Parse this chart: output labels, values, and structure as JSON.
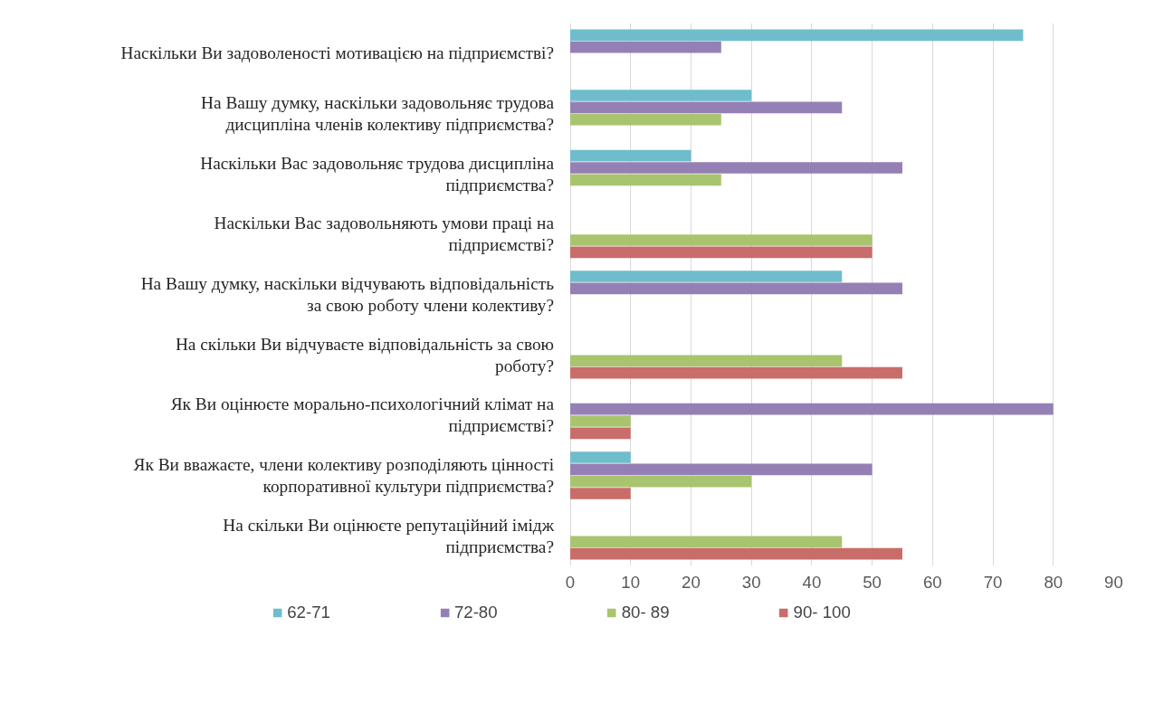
{
  "chart_data": {
    "type": "bar",
    "orientation": "horizontal",
    "categories": [
      "Наскільки Ви задоволеності мотивацією на підприємстві?",
      "На Вашу думку, наскільки задовольняє трудова дисципліна членів колективу підприємства?",
      "Наскільки Вас задовольняє трудова дисципліна підприємства?",
      "Наскільки Вас задовольняють умови праці на підприємстві?",
      "На Вашу думку, наскільки відчувають відповідальність за свою роботу члени колективу?",
      "На скільки Ви відчуваєте відповідальність за свою роботу?",
      "Як Ви оцінюєте морально-психологічний клімат на підприємстві?",
      "Як Ви вважаєте, члени колективу розподіляють цінності корпоративної культури підприємства?",
      "На скільки Ви оцінюєте репутаційний імідж підприємства?"
    ],
    "series": [
      {
        "name": "62-71",
        "color": "#6fbdcc",
        "values": [
          75,
          30,
          20,
          null,
          45,
          null,
          null,
          10,
          null
        ]
      },
      {
        "name": "72-80",
        "color": "#9580b5",
        "values": [
          25,
          45,
          55,
          null,
          55,
          null,
          80,
          50,
          null
        ]
      },
      {
        "name": "80- 89",
        "color": "#a8c46f",
        "values": [
          null,
          25,
          25,
          50,
          null,
          45,
          10,
          30,
          45
        ]
      },
      {
        "name": "90- 100",
        "color": "#c96d6a",
        "values": [
          null,
          null,
          null,
          50,
          null,
          55,
          10,
          10,
          55
        ]
      }
    ],
    "xlim": [
      0,
      90
    ],
    "xticks": [
      0,
      10,
      20,
      30,
      40,
      50,
      60,
      70,
      80,
      90
    ],
    "grid": "x",
    "legend": "bottom"
  }
}
